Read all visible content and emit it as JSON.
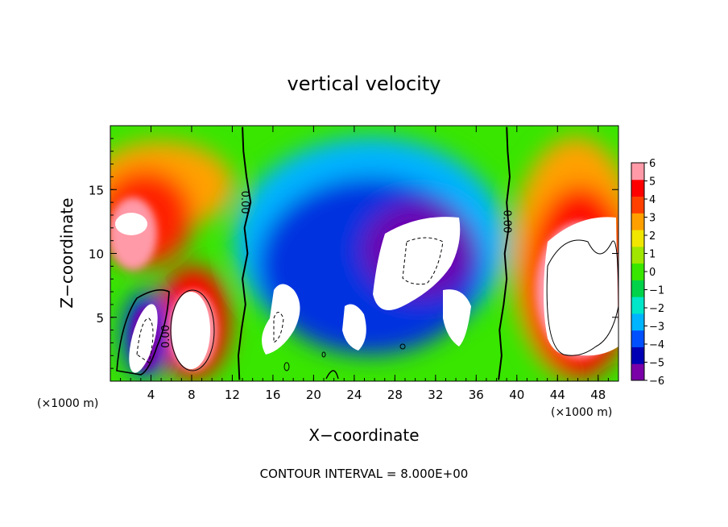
{
  "chart_data": {
    "type": "heatmap",
    "title": "vertical velocity",
    "xlabel": "X−coordinate",
    "ylabel": "Z−coordinate",
    "x_unit_left": "(×1000 m)",
    "x_unit_right": "(×1000 m)",
    "xlim": [
      0,
      50
    ],
    "ylim": [
      0,
      20
    ],
    "x_ticks": [
      4,
      8,
      12,
      16,
      20,
      24,
      28,
      32,
      36,
      40,
      44,
      48
    ],
    "y_ticks": [
      5,
      10,
      15
    ],
    "colorbar": {
      "min": -6,
      "max": 6,
      "ticks": [
        6,
        5,
        4,
        3,
        2,
        1,
        0,
        -1,
        -2,
        -3,
        -4,
        -5,
        -6
      ],
      "tick_labels": [
        "6",
        "5",
        "4",
        "3",
        "2",
        "1",
        "0",
        "−1",
        "−2",
        "−3",
        "−4",
        "−5",
        "−6"
      ],
      "colors": [
        "#7a00a8",
        "#0000b4",
        "#0050ff",
        "#00b4ff",
        "#00e6c8",
        "#00d24a",
        "#38e600",
        "#a0e600",
        "#f0e600",
        "#ffa000",
        "#ff4000",
        "#ff0000",
        "#ff9aa8"
      ]
    },
    "contour_labels": [
      {
        "text": "0.00",
        "x": 5.5,
        "z": 3.5,
        "rotation": -90
      },
      {
        "text": "0.00",
        "x": 13.2,
        "z": 14,
        "rotation": 90
      },
      {
        "text": "0.00",
        "x": 39.0,
        "z": 12.5,
        "rotation": 90
      }
    ],
    "footer": "CONTOUR INTERVAL = 8.000E+00",
    "regions": [
      {
        "x": 2.5,
        "z": 12.5,
        "value": 6,
        "rx": 3,
        "rz": 5
      },
      {
        "x": 4.0,
        "z": 3.5,
        "value": -6,
        "rx": 1.5,
        "rz": 3
      },
      {
        "x": 8.0,
        "z": 5,
        "value": 6,
        "rx": 2.2,
        "rz": 4
      },
      {
        "x": 17.0,
        "z": 5,
        "value": -6,
        "rx": 1.5,
        "rz": 4
      },
      {
        "x": 29.0,
        "z": 9,
        "value": -6,
        "rx": 4,
        "rz": 5
      },
      {
        "x": 46.0,
        "z": 8,
        "value": 6,
        "rx": 4,
        "rz": 6
      }
    ],
    "zero_contours": [
      {
        "x": [
          12.7,
          12.6,
          12.9,
          13.3,
          13.0,
          13.5,
          13.2,
          13.8,
          13.4,
          13.1,
          13.0
        ],
        "z": [
          0.1,
          2.0,
          4.0,
          6.0,
          8.0,
          10.0,
          12.0,
          14.0,
          16.0,
          18.0,
          19.9
        ]
      },
      {
        "x": [
          38.2,
          38.5,
          38.3,
          38.7,
          39.0,
          38.8,
          39.2,
          39.0,
          39.3,
          39.1,
          39.0
        ],
        "z": [
          0.1,
          2.0,
          4.0,
          6.0,
          8.0,
          10.0,
          12.0,
          14.0,
          16.0,
          18.0,
          19.9
        ]
      }
    ]
  }
}
